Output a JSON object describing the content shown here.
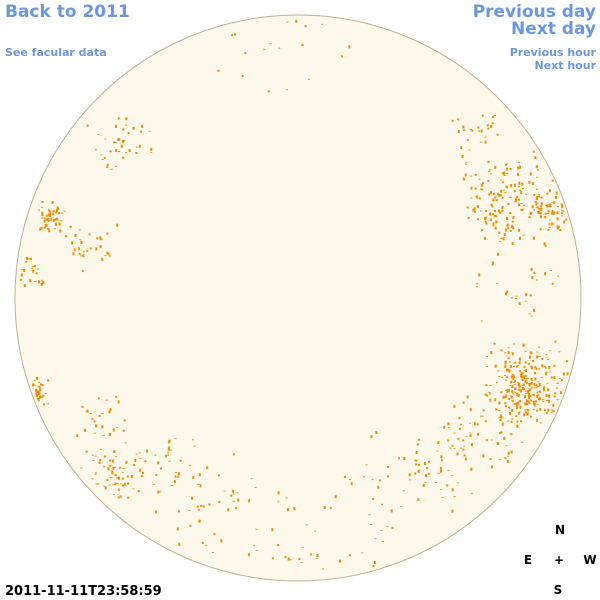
{
  "nav": {
    "back": "Back to 2011",
    "facular": "See facular data",
    "previous_day": "Previous day",
    "next_day": "Next day",
    "previous_hour": "Previous hour",
    "next_hour": "Next hour"
  },
  "compass": {
    "north": "N",
    "east": "E",
    "center": "+",
    "west": "W",
    "south": "S"
  },
  "timestamp": "2011-11-11T23:58:59"
}
